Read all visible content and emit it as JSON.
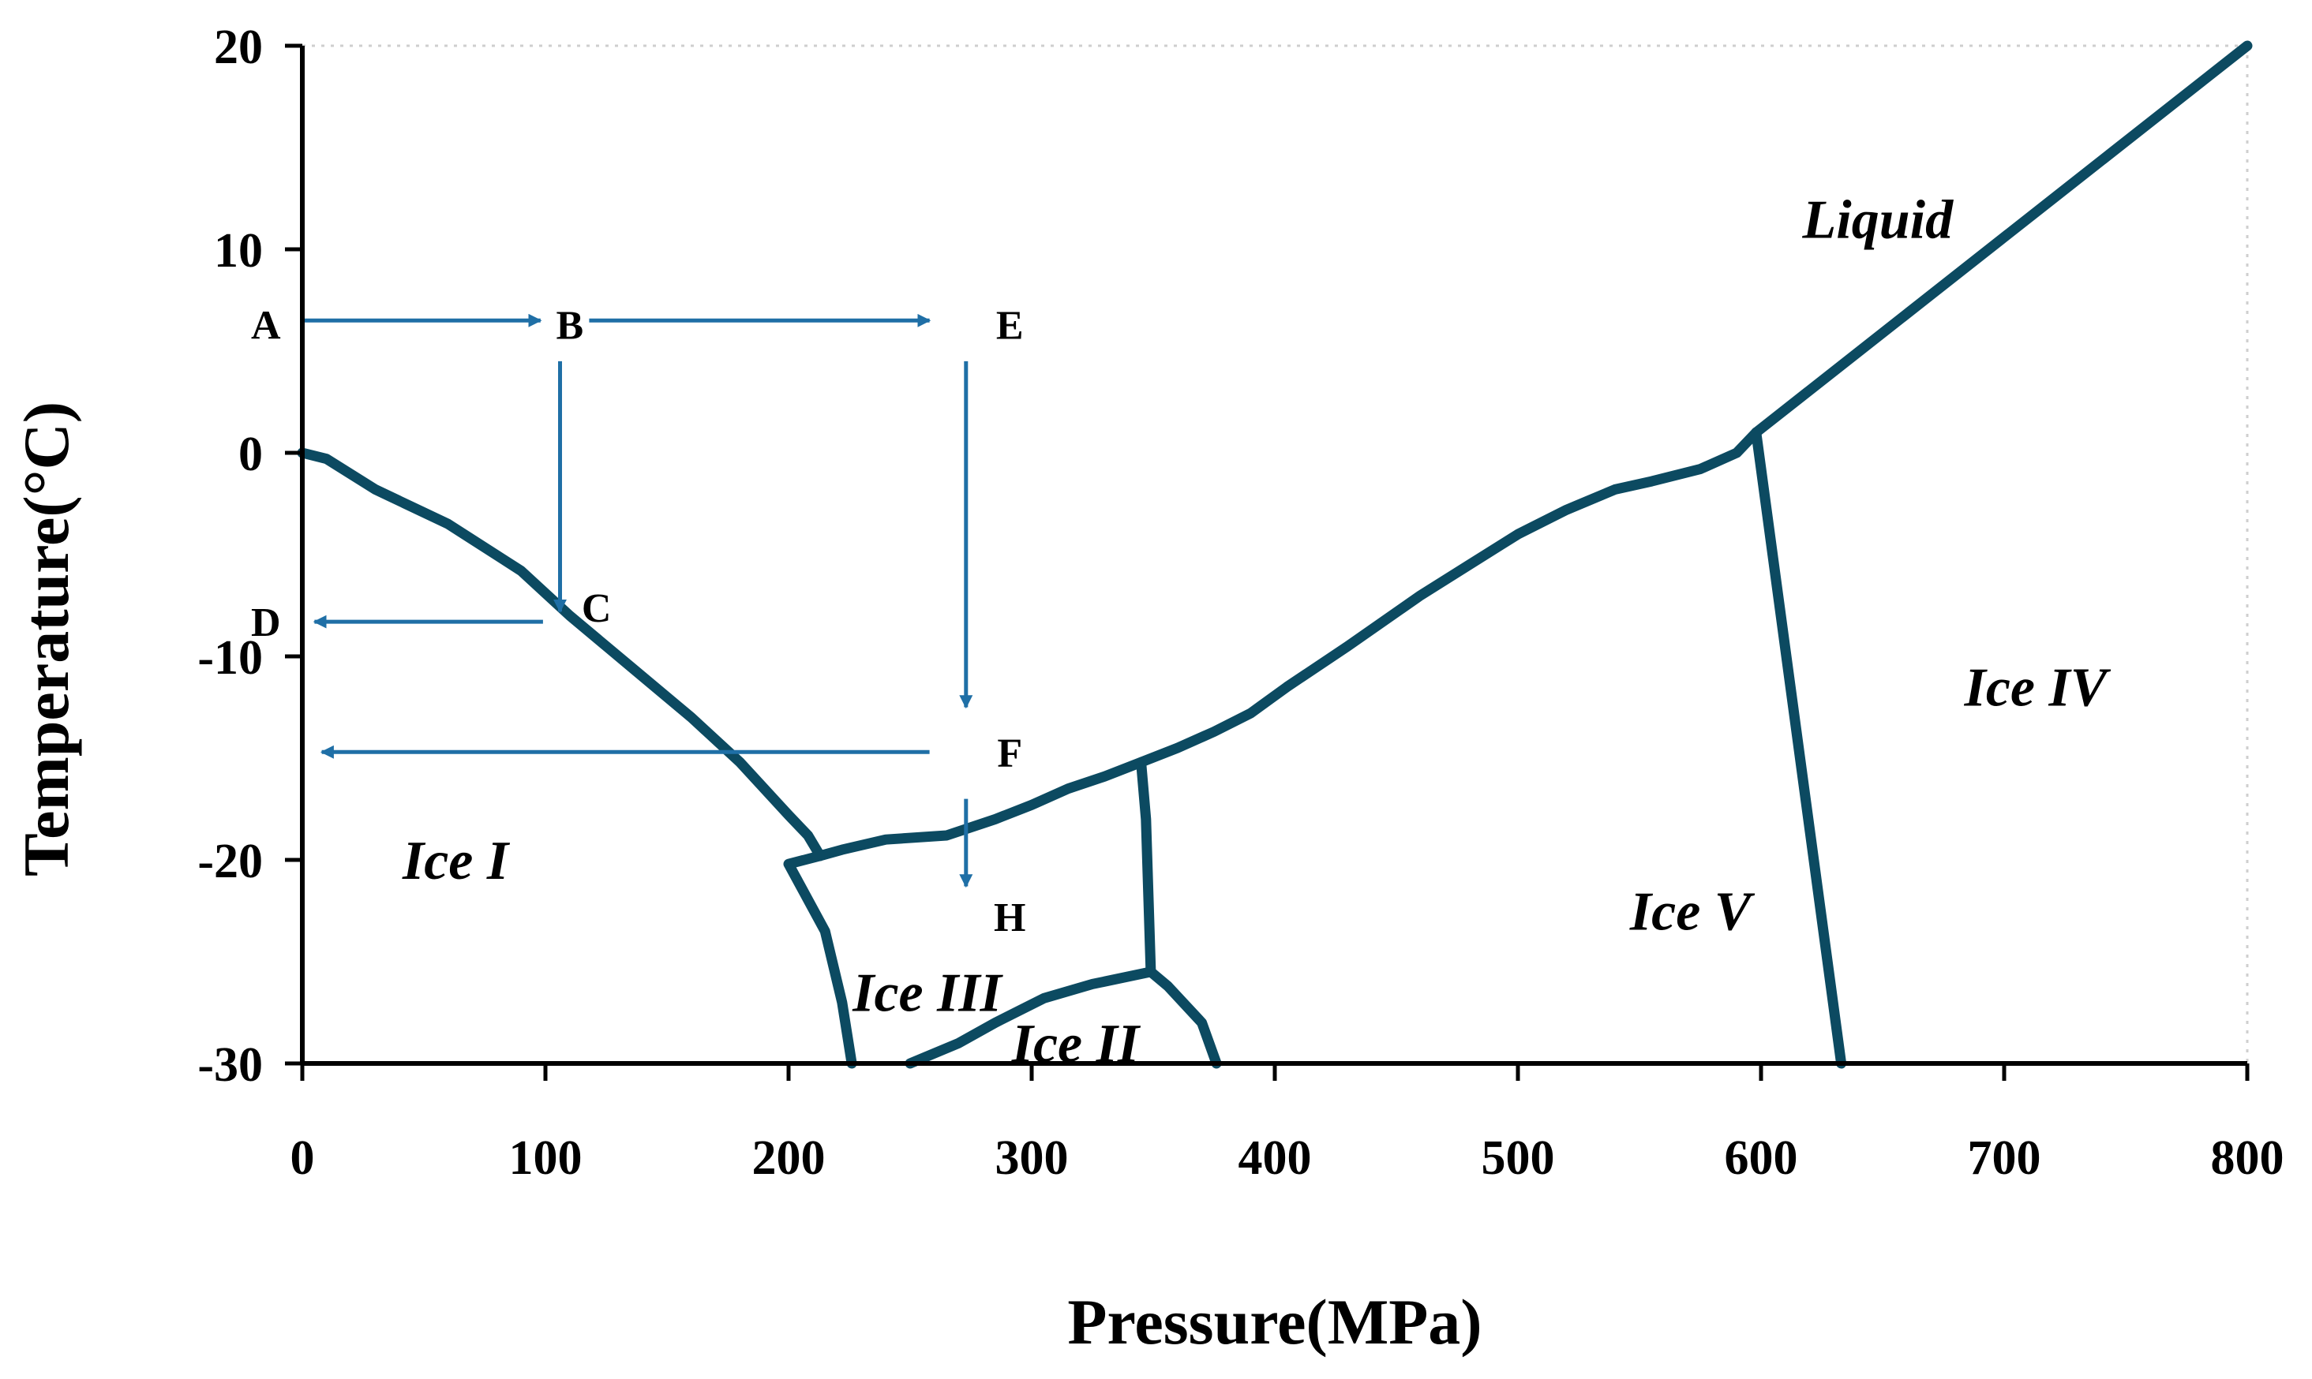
{
  "chart_data": {
    "type": "line",
    "title": "",
    "xlabel": "Pressure(MPa)",
    "ylabel": "Temperature(°C)",
    "xlim": [
      0,
      800
    ],
    "ylim": [
      -30,
      20
    ],
    "x_ticks": [
      0,
      100,
      200,
      300,
      400,
      500,
      600,
      700,
      800
    ],
    "y_ticks": [
      20,
      10,
      0,
      -10,
      -20,
      -30
    ],
    "x_tick_labels": [
      "0",
      "100",
      "200",
      "300",
      "400",
      "500",
      "600",
      "700",
      "800"
    ],
    "y_tick_labels": [
      "20",
      "10",
      "0",
      "-10",
      "-20",
      "-30"
    ],
    "colors": {
      "boundary": "#0c4a61",
      "path": "#1f6fa6",
      "axis": "#000000",
      "frame": "#cccccc"
    },
    "series": [
      {
        "name": "ice-i-liquid",
        "points": [
          [
            0,
            0
          ],
          [
            10,
            -0.3
          ],
          [
            30,
            -1.8
          ],
          [
            60,
            -3.5
          ],
          [
            90,
            -5.8
          ],
          [
            110,
            -8
          ],
          [
            135,
            -10.5
          ],
          [
            160,
            -13
          ],
          [
            180,
            -15.2
          ],
          [
            200,
            -17.8
          ],
          [
            208,
            -18.8
          ],
          [
            213,
            -19.8
          ]
        ]
      },
      {
        "name": "ice-iii-liquid",
        "points": [
          [
            213,
            -19.8
          ],
          [
            222,
            -19.5
          ],
          [
            240,
            -19
          ],
          [
            265,
            -18.8
          ],
          [
            285,
            -18
          ],
          [
            300,
            -17.3
          ],
          [
            315,
            -16.5
          ],
          [
            330,
            -15.9
          ],
          [
            345,
            -15.2
          ],
          [
            360,
            -14.5
          ],
          [
            375,
            -13.7
          ],
          [
            390,
            -12.8
          ],
          [
            405,
            -11.5
          ],
          [
            430,
            -9.5
          ],
          [
            460,
            -7
          ],
          [
            480,
            -5.5
          ],
          [
            500,
            -4
          ],
          [
            520,
            -2.8
          ],
          [
            540,
            -1.8
          ],
          [
            555,
            -1.4
          ],
          [
            575,
            -0.8
          ],
          [
            590,
            0
          ],
          [
            598,
            1.0
          ]
        ]
      },
      {
        "name": "ice-v-liquid",
        "points": [
          [
            598,
            1.0
          ],
          [
            800,
            20
          ]
        ]
      },
      {
        "name": "ice-i-iii",
        "points": [
          [
            213,
            -19.8
          ],
          [
            200,
            -20.2
          ],
          [
            205,
            -21.3
          ],
          [
            215,
            -23.5
          ],
          [
            222,
            -27
          ],
          [
            226,
            -30
          ]
        ]
      },
      {
        "name": "ice-iii-v",
        "points": [
          [
            345,
            -15.2
          ],
          [
            347,
            -18
          ],
          [
            349,
            -25.5
          ]
        ]
      },
      {
        "name": "ice-ii-iii",
        "points": [
          [
            250,
            -30
          ],
          [
            270,
            -29
          ],
          [
            285,
            -28
          ],
          [
            305,
            -26.8
          ],
          [
            325,
            -26.1
          ],
          [
            349,
            -25.5
          ]
        ]
      },
      {
        "name": "ice-ii-v",
        "points": [
          [
            349,
            -25.5
          ],
          [
            356,
            -26.2
          ],
          [
            370,
            -28
          ],
          [
            376,
            -30
          ]
        ]
      },
      {
        "name": "ice-v-iv",
        "points": [
          [
            598,
            1.0
          ],
          [
            633,
            -30
          ]
        ]
      }
    ],
    "paths": [
      {
        "from": "A",
        "to": "B",
        "points": [
          [
            0,
            6.5
          ],
          [
            98,
            6.5
          ]
        ]
      },
      {
        "from": "B",
        "to": "E",
        "points": [
          [
            118,
            6.5
          ],
          [
            258,
            6.5
          ]
        ]
      },
      {
        "from": "B",
        "to": "C",
        "points": [
          [
            106,
            4.5
          ],
          [
            106,
            -7.8
          ]
        ]
      },
      {
        "from": "C",
        "to": "D",
        "points": [
          [
            99,
            -8.3
          ],
          [
            5,
            -8.3
          ]
        ]
      },
      {
        "from": "E",
        "to": "F",
        "points": [
          [
            273,
            4.5
          ],
          [
            273,
            -12.5
          ]
        ]
      },
      {
        "from": "F",
        "to": "D",
        "points": [
          [
            258,
            -14.7
          ],
          [
            8,
            -14.7
          ]
        ]
      },
      {
        "from": "F",
        "to": "H",
        "points": [
          [
            273,
            -17
          ],
          [
            273,
            -21.3
          ]
        ]
      }
    ],
    "point_labels": [
      {
        "text": "A",
        "x": -15,
        "y": 6.3
      },
      {
        "text": "B",
        "x": 110,
        "y": 6.3
      },
      {
        "text": "E",
        "x": 291,
        "y": 6.3
      },
      {
        "text": "C",
        "x": 121,
        "y": -7.6
      },
      {
        "text": "D",
        "x": -15,
        "y": -8.3
      },
      {
        "text": "F",
        "x": 291,
        "y": -14.7
      },
      {
        "text": "H",
        "x": 291,
        "y": -22.8
      }
    ],
    "regions": [
      {
        "text": "Liquid",
        "x": 648,
        "y": 11.5
      },
      {
        "text": "Ice IV",
        "x": 713,
        "y": -11.5
      },
      {
        "text": "Ice V",
        "x": 571,
        "y": -22.5
      },
      {
        "text": "Ice I",
        "x": 63,
        "y": -20
      },
      {
        "text": "Ice III",
        "x": 257,
        "y": -26.5
      },
      {
        "text": "Ice II",
        "x": 318,
        "y": -29
      }
    ]
  }
}
